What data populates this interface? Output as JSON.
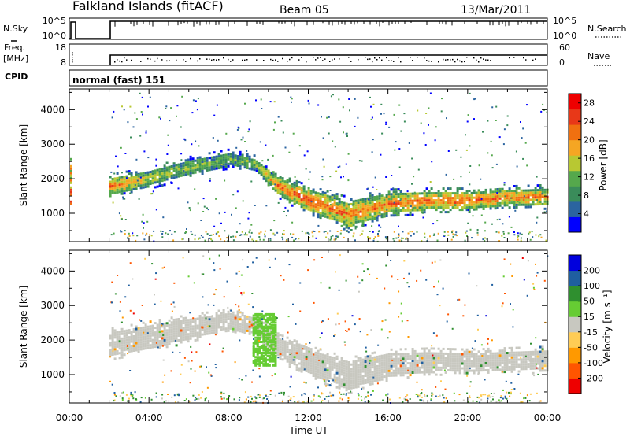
{
  "header": {
    "station": "Falkland Islands (fitACF)",
    "beam": "Beam 05",
    "date": "13/Mar/2011"
  },
  "strips": {
    "nsky": {
      "label": "N.Sky",
      "left_ticks": [
        "10^5",
        "10^0"
      ]
    },
    "nsearch": {
      "label": "N.Search",
      "right_ticks": [
        "10^5",
        "10^0"
      ]
    },
    "freq": {
      "label_line1": "Freq.",
      "label_line2": "[MHz]",
      "left_ticks": [
        "18",
        "8"
      ]
    },
    "nave": {
      "label": "Nave",
      "right_ticks": [
        "60",
        "0"
      ]
    },
    "cpid": {
      "label": "CPID",
      "mode": "normal (fast) 151"
    }
  },
  "colors": {
    "power_scale": [
      "#0000ff",
      "#2b64a0",
      "#3a8c5a",
      "#55a84c",
      "#b8c832",
      "#f5a623",
      "#f07010",
      "#e83818",
      "#ee0000"
    ],
    "velocity_scale": [
      "#ee0000",
      "#ff5500",
      "#ff9900",
      "#ffcc55",
      "#c8c8c0",
      "#66cc33",
      "#2f8f2f",
      "#1f5fa0",
      "#0000dd"
    ],
    "ground_scatter": "#c8c8c0"
  },
  "chart_data": [
    {
      "type": "heatmap",
      "name": "power",
      "xlabel": "Time UT",
      "ylabel": "Slant Range [km]",
      "x_ticks": [
        "00:00",
        "04:00",
        "08:00",
        "12:00",
        "16:00",
        "20:00",
        "00:00"
      ],
      "xlim_hours": [
        0,
        24
      ],
      "y_ticks": [
        1000,
        2000,
        3000,
        4000
      ],
      "ylim_km": [
        180,
        4600
      ],
      "colorbar": {
        "label": "Power [dB]",
        "ticks": [
          4,
          8,
          12,
          16,
          20,
          24,
          28
        ],
        "range": [
          0,
          30
        ]
      },
      "data_gap_hours": [
        [
          0.35,
          2.0
        ]
      ],
      "echo_band": [
        {
          "t": 2.0,
          "center_km": 1800,
          "width_km": 500,
          "power_db": 22
        },
        {
          "t": 4.0,
          "center_km": 2050,
          "width_km": 450,
          "power_db": 16
        },
        {
          "t": 6.0,
          "center_km": 2350,
          "width_km": 450,
          "power_db": 13
        },
        {
          "t": 8.0,
          "center_km": 2600,
          "width_km": 400,
          "power_db": 12
        },
        {
          "t": 9.3,
          "center_km": 2450,
          "width_km": 350,
          "power_db": 14
        },
        {
          "t": 10.5,
          "center_km": 1800,
          "width_km": 500,
          "power_db": 22
        },
        {
          "t": 12.0,
          "center_km": 1400,
          "width_km": 600,
          "power_db": 24
        },
        {
          "t": 14.0,
          "center_km": 1000,
          "width_km": 700,
          "power_db": 22
        },
        {
          "t": 16.0,
          "center_km": 1300,
          "width_km": 600,
          "power_db": 21
        },
        {
          "t": 18.0,
          "center_km": 1400,
          "width_km": 500,
          "power_db": 22
        },
        {
          "t": 20.0,
          "center_km": 1400,
          "width_km": 500,
          "power_db": 23
        },
        {
          "t": 22.0,
          "center_km": 1500,
          "width_km": 450,
          "power_db": 22
        },
        {
          "t": 24.0,
          "center_km": 1500,
          "width_km": 500,
          "power_db": 21
        }
      ]
    },
    {
      "type": "heatmap",
      "name": "velocity",
      "xlabel": "Time UT",
      "ylabel": "Slant Range [km]",
      "x_ticks": [
        "00:00",
        "04:00",
        "08:00",
        "12:00",
        "16:00",
        "20:00",
        "00:00"
      ],
      "xlim_hours": [
        0,
        24
      ],
      "y_ticks": [
        1000,
        2000,
        3000,
        4000
      ],
      "ylim_km": [
        180,
        4600
      ],
      "colorbar": {
        "label": "Velocity [m s⁻¹]",
        "ticks": [
          200,
          100,
          50,
          15,
          -15,
          -50,
          -100,
          -200
        ],
        "range": [
          -250,
          250
        ]
      },
      "ground_scatter_band": [
        {
          "t": 2.0,
          "center_km": 1900,
          "width_km": 700
        },
        {
          "t": 5.0,
          "center_km": 2250,
          "width_km": 650
        },
        {
          "t": 8.0,
          "center_km": 2600,
          "width_km": 500
        },
        {
          "t": 9.3,
          "center_km": 2450,
          "width_km": 400
        },
        {
          "t": 10.5,
          "center_km": 1800,
          "width_km": 600
        },
        {
          "t": 12.0,
          "center_km": 1400,
          "width_km": 700
        },
        {
          "t": 14.0,
          "center_km": 1000,
          "width_km": 800
        },
        {
          "t": 16.0,
          "center_km": 1300,
          "width_km": 700
        },
        {
          "t": 18.0,
          "center_km": 1400,
          "width_km": 600
        },
        {
          "t": 20.0,
          "center_km": 1400,
          "width_km": 550
        },
        {
          "t": 24.0,
          "center_km": 1450,
          "width_km": 600
        }
      ],
      "positive_velocity_patch": {
        "t_range": [
          9.2,
          10.3
        ],
        "km_range": [
          1300,
          2800
        ],
        "velocity": 50
      }
    }
  ]
}
